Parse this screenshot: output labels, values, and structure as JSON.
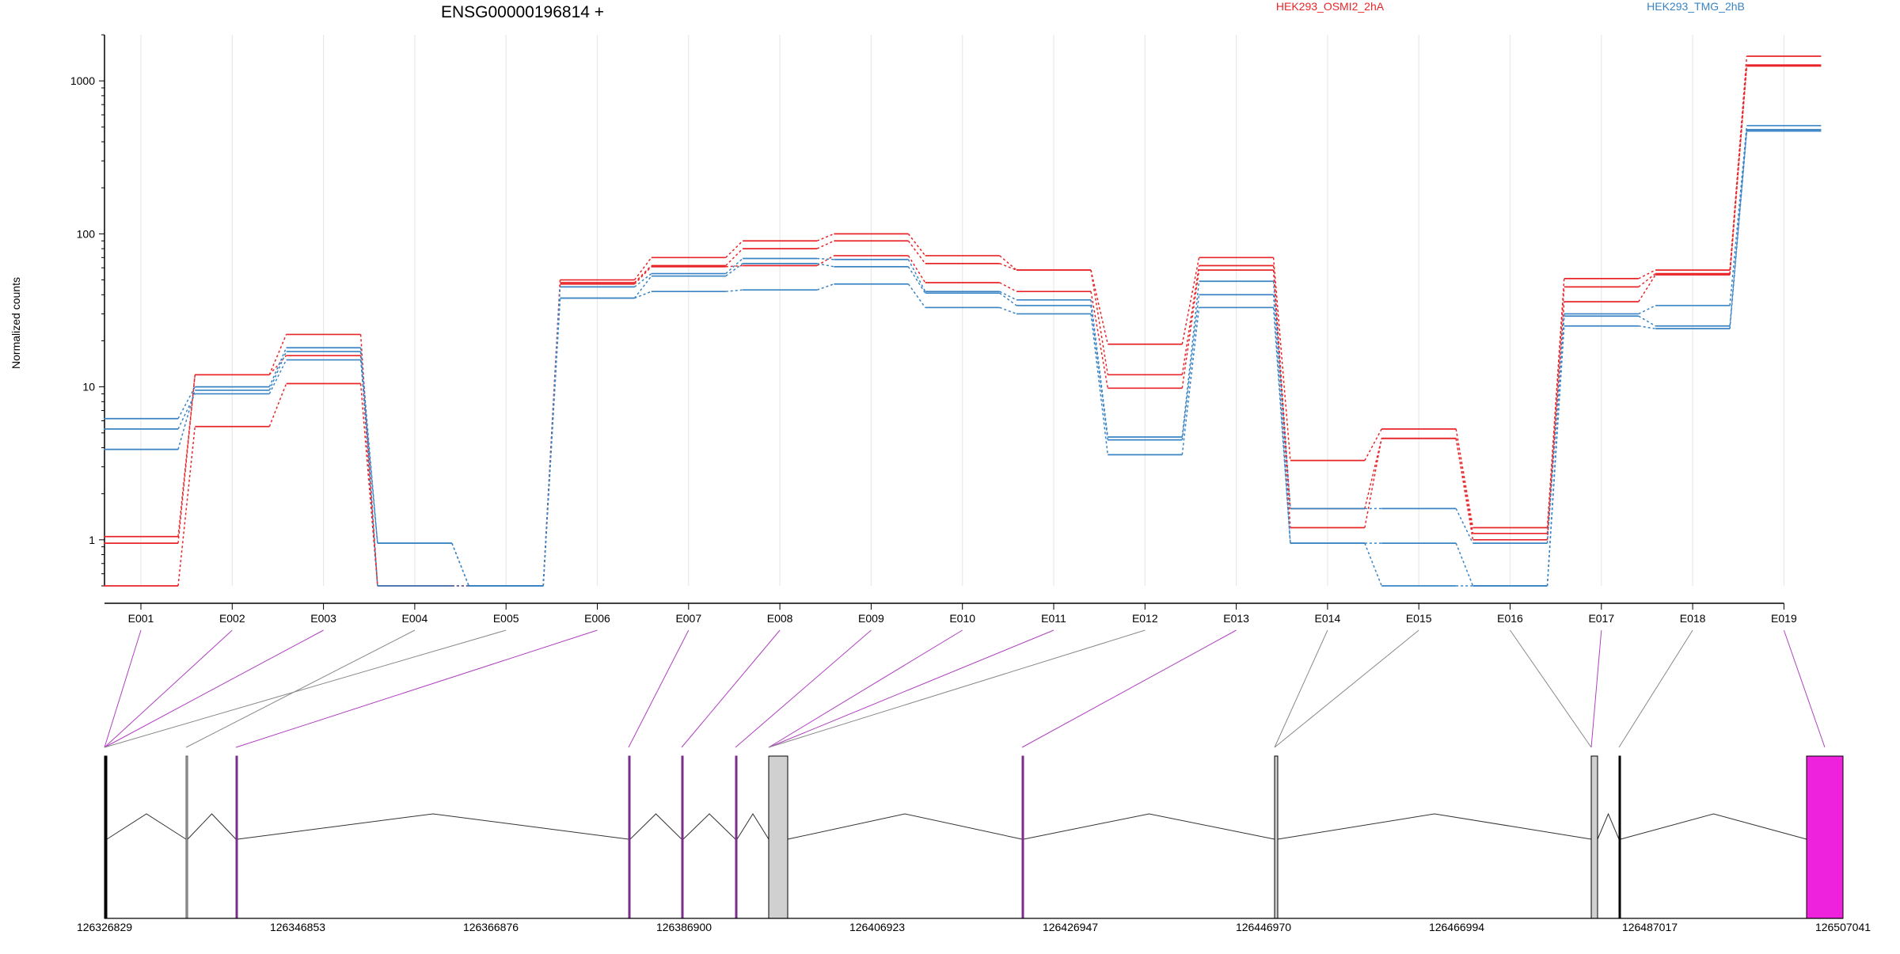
{
  "chart_data": {
    "type": "line",
    "title": "ENSG00000196814 +",
    "ylabel": "Normalized counts",
    "yscale": "log",
    "ylim": [
      0.5,
      2000
    ],
    "yticks": [
      "1",
      "10",
      "100",
      "1000"
    ],
    "grid": "vertical gridlines at exon centers",
    "legend_position": "top",
    "legend": [
      {
        "name": "HEK293_OSMI2_2hA",
        "color": "#e8262a"
      },
      {
        "name": "HEK293_TMG_2hB",
        "color": "#3a84c4"
      }
    ],
    "categories": [
      "E001",
      "E002",
      "E003",
      "E004",
      "E005",
      "E006",
      "E007",
      "E008",
      "E009",
      "E010",
      "E011",
      "E012",
      "E013",
      "E014",
      "E015",
      "E016",
      "E017",
      "E018",
      "E019"
    ],
    "series": [
      {
        "group": "OSMI2",
        "color": "#e8262a",
        "values": [
          1.05,
          12,
          22,
          0.5,
          0.5,
          50,
          70,
          90,
          100,
          72,
          58,
          19,
          70,
          3.3,
          5.3,
          1.2,
          51,
          58,
          1450
        ]
      },
      {
        "group": "OSMI2",
        "color": "#e8262a",
        "values": [
          0.95,
          12,
          16,
          0.5,
          0.5,
          48,
          62,
          80,
          90,
          64,
          58,
          12,
          62,
          1.6,
          4.6,
          1.1,
          45,
          55,
          1270
        ]
      },
      {
        "group": "OSMI2",
        "color": "#e8262a",
        "values": [
          0.5,
          5.5,
          10.5,
          0.5,
          0.5,
          47,
          61,
          62,
          72,
          48,
          42,
          9.8,
          58,
          1.2,
          4.6,
          1.0,
          36,
          54,
          1250
        ]
      },
      {
        "group": "TMG",
        "color": "#3a84c4",
        "values": [
          6.2,
          10,
          18,
          0.95,
          0.5,
          45,
          55,
          69,
          68,
          42,
          37,
          4.7,
          49,
          1.6,
          1.6,
          0.95,
          30,
          34,
          510
        ]
      },
      {
        "group": "TMG",
        "color": "#3a84c4",
        "values": [
          5.3,
          9,
          15,
          0.95,
          0.5,
          38,
          53,
          64,
          61,
          41,
          34,
          4.5,
          40,
          0.95,
          0.95,
          0.5,
          29,
          25,
          480
        ]
      },
      {
        "group": "TMG",
        "color": "#3a84c4",
        "values": [
          3.9,
          9.5,
          17,
          0.5,
          0.5,
          38,
          42,
          43,
          47,
          33,
          30,
          3.6,
          33,
          0.95,
          0.5,
          0.5,
          25,
          24,
          470
        ]
      }
    ],
    "gene_model": {
      "coordinate_labels": [
        "126326829",
        "126346853",
        "126366876",
        "126386900",
        "126406923",
        "126426947",
        "126446970",
        "126466994",
        "126487017",
        "126507041"
      ],
      "exon_link_colors": {
        "significant": "#b040c0",
        "other": "#888888"
      },
      "highlight_color": "#ee22dd"
    }
  }
}
